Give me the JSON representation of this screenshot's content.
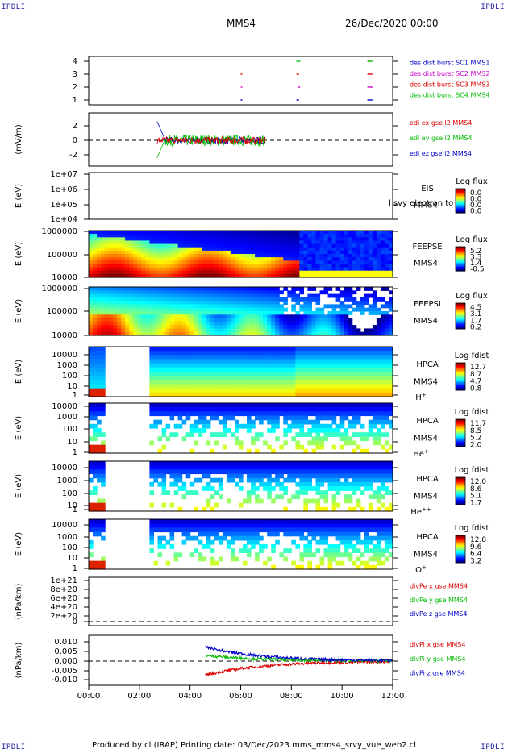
{
  "corners": {
    "tl": "IPDLI",
    "tr": "IPDLI",
    "bl": "IPDLI",
    "br": "IPDLI"
  },
  "header": {
    "spacecraft": "MMS4",
    "datetime": "26/Dec/2020 00:00"
  },
  "footer": {
    "text": "Produced by cl (IRAP)    Printing date: 03/Dec/2023    mms_mms4_srvy_vue_web2.cl"
  },
  "xaxis": {
    "ticks": [
      "00:00",
      "02:00",
      "04:00",
      "06:00",
      "08:00",
      "10:00",
      "12:00"
    ],
    "range_hours": [
      0,
      12
    ]
  },
  "panels": [
    {
      "id": "burst",
      "ylabel": "",
      "yticks": [
        "4",
        "3",
        "2",
        "1"
      ],
      "legend": [
        {
          "text": "des dist burst SC1 MMS1",
          "color": "#0000cc"
        },
        {
          "text": "des dist burst SC2 MMS2",
          "color": "#cc00cc"
        },
        {
          "text": "des dist burst SC3 MMS3",
          "color": "#dd0000"
        },
        {
          "text": "des dist burst SC4 MMS4",
          "color": "#00bb00"
        }
      ]
    },
    {
      "id": "edi",
      "ylabel": "(mV/m)",
      "yticks": [
        "2",
        "0",
        "-2"
      ],
      "legend": [
        {
          "text": "edi ex gse l2 MMS4",
          "color": "#dd0000"
        },
        {
          "text": "edi ey gse l2 MMS4",
          "color": "#00bb00"
        },
        {
          "text": "edi ez gse l2 MMS4",
          "color": "#0000cc"
        }
      ]
    },
    {
      "id": "eis",
      "ylabel": "E (eV)",
      "yticks": [
        "1e+07",
        "1e+06",
        "1e+05",
        "1e+04"
      ],
      "side": [
        "EIS",
        "MMS4"
      ],
      "overlay": "l svy electron to",
      "cb_title": "Log flux",
      "cb_ticks": [
        "0.0",
        "0.0",
        "0.0",
        "0.0"
      ]
    },
    {
      "id": "feepse",
      "ylabel": "E (eV)",
      "yticks": [
        "1000000",
        "100000",
        "10000"
      ],
      "side": [
        "FEEPSE",
        "MMS4"
      ],
      "cb_title": "Log flux",
      "cb_ticks": [
        "5.2",
        "3.3",
        "1.4",
        "-0.5"
      ]
    },
    {
      "id": "feepsi",
      "ylabel": "E (eV)",
      "yticks": [
        "1000000",
        "100000",
        "10000"
      ],
      "side": [
        "FEEPSI",
        "MMS4"
      ],
      "cb_title": "Log flux",
      "cb_ticks": [
        "4.5",
        "3.1",
        "1.7",
        "0.2"
      ]
    },
    {
      "id": "hpca_h",
      "ylabel": "E (eV)",
      "yticks": [
        "10000",
        "1000",
        "100",
        "10",
        "1"
      ],
      "side": [
        "HPCA",
        "MMS4",
        "H+"
      ],
      "cb_title": "Log fdist",
      "cb_ticks": [
        "12.7",
        "8.7",
        "4.7",
        "0.8"
      ]
    },
    {
      "id": "hpca_he",
      "ylabel": "E (eV)",
      "yticks": [
        "10000",
        "1000",
        "100",
        "10",
        "1"
      ],
      "side": [
        "HPCA",
        "MMS4",
        "He+"
      ],
      "cb_title": "Log fdist",
      "cb_ticks": [
        "11.7",
        "8.5",
        "5.2",
        "2.0"
      ]
    },
    {
      "id": "hpca_hepp",
      "ylabel": "E (eV)",
      "yticks": [
        "10000",
        "1000",
        "100",
        "10",
        "1"
      ],
      "side": [
        "HPCA",
        "MMS4",
        "He++"
      ],
      "cb_title": "Log fdist",
      "cb_ticks": [
        "12.0",
        "8.6",
        "5.1",
        "1.7"
      ]
    },
    {
      "id": "hpca_o",
      "ylabel": "E (eV)",
      "yticks": [
        "10000",
        "1000",
        "100",
        "10",
        "1"
      ],
      "side": [
        "HPCA",
        "MMS4",
        "O+"
      ],
      "cb_title": "Log fdist",
      "cb_ticks": [
        "12.8",
        "9.6",
        "6.4",
        "3.2"
      ]
    },
    {
      "id": "divpe",
      "ylabel": "(nPa/km)",
      "yticks": [
        "1e+21",
        "8e+20",
        "6e+20",
        "4e+20",
        "2e+20",
        "0"
      ],
      "legend": [
        {
          "text": "divPe x gse MMS4",
          "color": "#dd0000"
        },
        {
          "text": "divPe y gse MMS4",
          "color": "#00bb00"
        },
        {
          "text": "divPe z gse MMS4",
          "color": "#0000cc"
        }
      ]
    },
    {
      "id": "divpi",
      "ylabel": "(nPa/km)",
      "yticks": [
        "0.010",
        "0.005",
        "0.000",
        "-0.005",
        "-0.010"
      ],
      "legend": [
        {
          "text": "divPi x gse MMS4",
          "color": "#dd0000"
        },
        {
          "text": "divPi y gse MMS4",
          "color": "#00bb00"
        },
        {
          "text": "divPi z gse MMS4",
          "color": "#0000cc"
        }
      ]
    }
  ],
  "chart_data": {
    "type": "line",
    "xlabel": "",
    "burst_intervals": [
      {
        "sc": 4,
        "start": 8.2,
        "end": 8.35
      },
      {
        "sc": 4,
        "start": 11.0,
        "end": 11.2
      },
      {
        "sc": 3,
        "start": 6.0,
        "end": 6.05
      },
      {
        "sc": 3,
        "start": 8.2,
        "end": 8.3
      },
      {
        "sc": 3,
        "start": 11.0,
        "end": 11.2
      },
      {
        "sc": 2,
        "start": 6.0,
        "end": 6.05
      },
      {
        "sc": 2,
        "start": 8.25,
        "end": 8.35
      },
      {
        "sc": 2,
        "start": 11.0,
        "end": 11.2
      },
      {
        "sc": 1,
        "start": 6.0,
        "end": 6.05
      },
      {
        "sc": 1,
        "start": 8.2,
        "end": 8.3
      },
      {
        "sc": 1,
        "start": 11.0,
        "end": 11.2
      }
    ],
    "edi_ylim": [
      -3,
      3
    ],
    "edi_interval_hours": [
      2.7,
      7.0
    ],
    "divpi_ylim": [
      -0.013,
      0.013
    ],
    "divpi_start_hour": 4.6
  }
}
